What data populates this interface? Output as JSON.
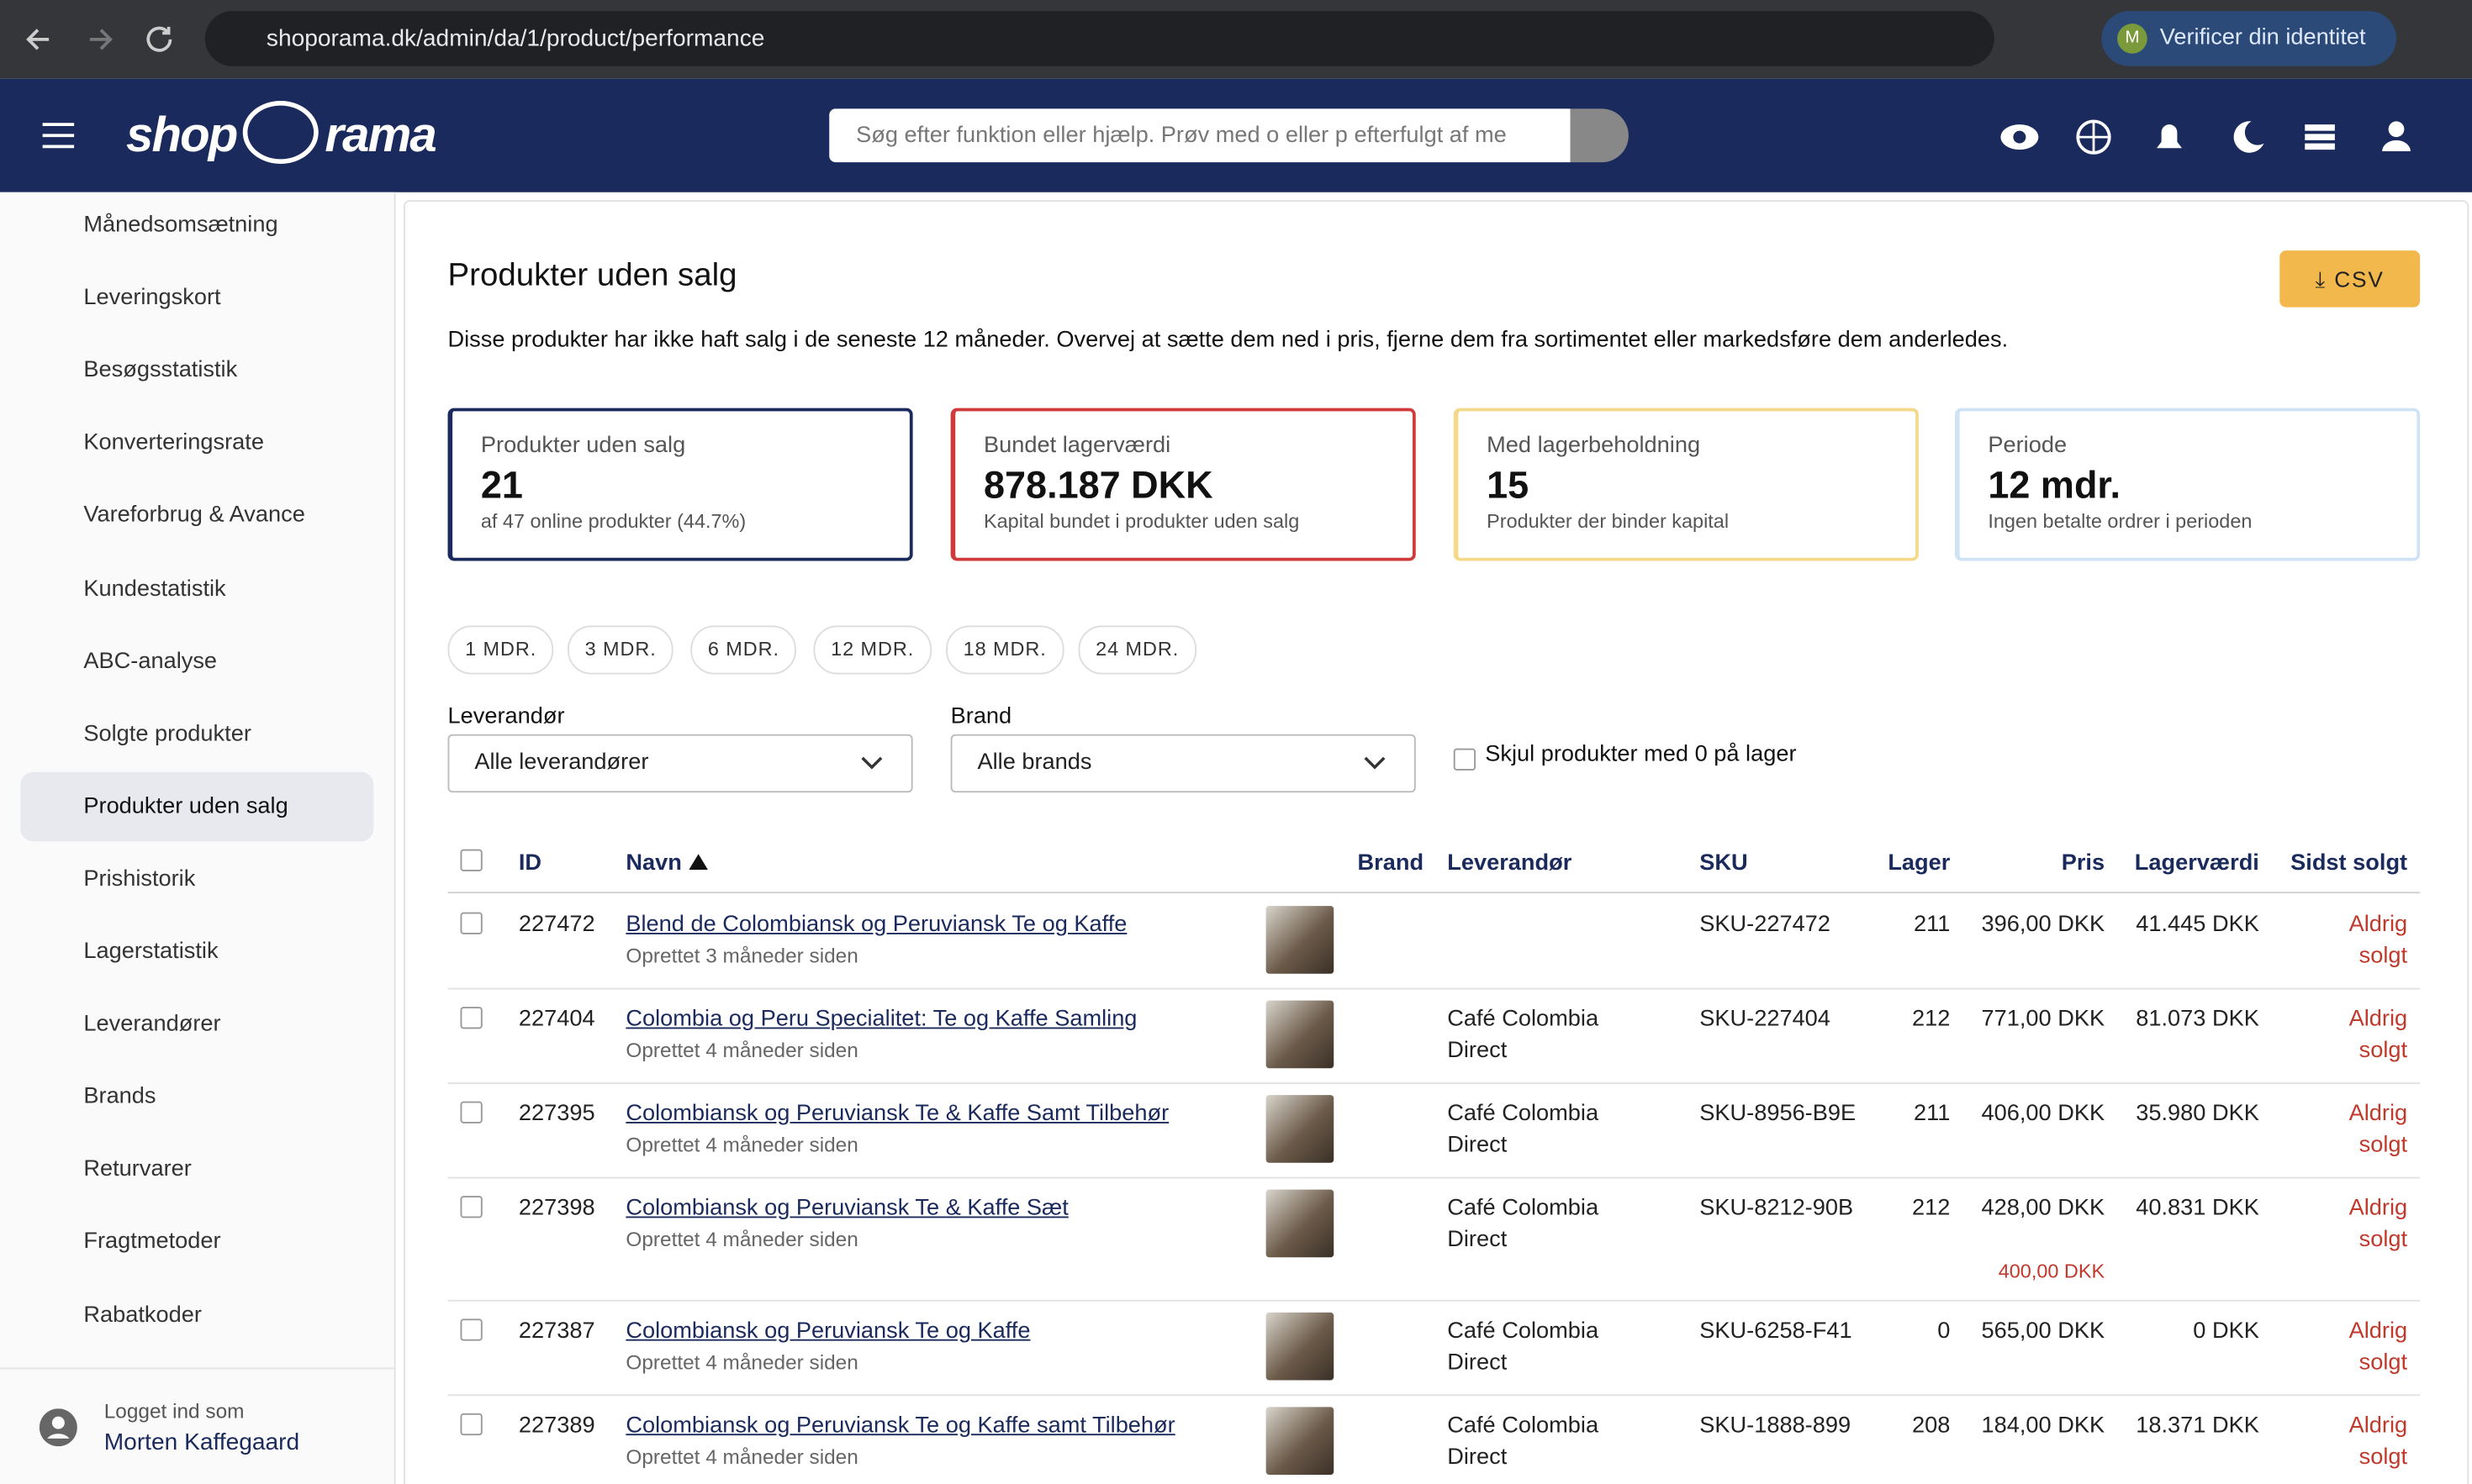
{
  "browser": {
    "url": "shoporama.dk/admin/da/1/product/performance",
    "profile_initial": "M",
    "profile_label": "Verificer din identitet"
  },
  "header": {
    "logo_left": "shop",
    "logo_right": "rama",
    "search_placeholder": "Søg efter funktion eller hjælp. Prøv med o eller p efterfulgt af me"
  },
  "sidebar": {
    "items": [
      "Månedsomsætning",
      "Leveringskort",
      "Besøgsstatistik",
      "Konverteringsrate",
      "Vareforbrug & Avance",
      "Kundestatistik",
      "ABC-analyse",
      "Solgte produkter",
      "Produkter uden salg",
      "Prishistorik",
      "Lagerstatistik",
      "Leverandører",
      "Brands",
      "Returvarer",
      "Fragtmetoder",
      "Rabatkoder"
    ],
    "active": 8,
    "user_label": "Logget ind som",
    "user_name": "Morten Kaffegaard"
  },
  "main": {
    "title": "Produkter uden salg",
    "csv_button": "CSV",
    "description": "Disse produkter har ikke haft salg i de seneste 12 måneder. Overvej at sætte dem ned i pris, fjerne dem fra sortimentet eller markedsføre dem anderledes.",
    "cards": [
      {
        "label": "Produkter uden salg",
        "value": "21",
        "note": "af 47 online produkter (44.7%)",
        "color": "#1b2a5c"
      },
      {
        "label": "Bundet lagerværdi",
        "value": "878.187 DKK",
        "note": "Kapital bundet i produkter uden salg",
        "color": "#d03a3a"
      },
      {
        "label": "Med lagerbeholdning",
        "value": "15",
        "note": "Produkter der binder kapital",
        "color": "#f4d98a"
      },
      {
        "label": "Periode",
        "value": "12 mdr.",
        "note": "Ingen betalte ordrer i perioden",
        "color": "#cfe3f5"
      }
    ],
    "periods": [
      "1 MDR.",
      "3 MDR.",
      "6 MDR.",
      "12 MDR.",
      "18 MDR.",
      "24 MDR."
    ],
    "filters": {
      "supplier_label": "Leverandør",
      "supplier_value": "Alle leverandører",
      "brand_label": "Brand",
      "brand_value": "Alle brands",
      "hide_zero_label": "Skjul produkter med 0 på lager"
    }
  },
  "table": {
    "headers": {
      "id": "ID",
      "name": "Navn",
      "brand": "Brand",
      "supplier": "Leverandør",
      "sku": "SKU",
      "stock": "Lager",
      "price": "Pris",
      "stock_value": "Lagerværdi",
      "last_sold": "Sidst solgt"
    },
    "rows": [
      {
        "id": "227472",
        "name": "Blend de Colombiansk og Peruviansk Te og Kaffe",
        "created": "Oprettet 3 måneder siden",
        "sku": "SKU-227472",
        "stock": "211",
        "price": "396,00 DKK",
        "stock_value": "41.445 DKK",
        "last_sold": "Aldrig solgt"
      },
      {
        "id": "227404",
        "name": "Colombia og Peru Specialitet: Te og Kaffe Samling",
        "created": "Oprettet 4 måneder siden",
        "supplier": "Café Colombia Direct",
        "sku": "SKU-227404",
        "stock": "212",
        "price": "771,00 DKK",
        "stock_value": "81.073 DKK",
        "last_sold": "Aldrig solgt"
      },
      {
        "id": "227395",
        "name": "Colombiansk og Peruviansk Te & Kaffe Samt Tilbehør",
        "created": "Oprettet 4 måneder siden",
        "supplier": "Café Colombia Direct",
        "sku": "SKU-8956-B9E",
        "stock": "211",
        "price": "406,00 DKK",
        "stock_value": "35.980 DKK",
        "last_sold": "Aldrig solgt"
      },
      {
        "id": "227398",
        "name": "Colombiansk og Peruviansk Te & Kaffe Sæt",
        "created": "Oprettet 4 måneder siden",
        "supplier": "Café Colombia Direct",
        "sku": "SKU-8212-90B",
        "stock": "212",
        "price": "428,00 DKK",
        "sale_price": "400,00 DKK",
        "stock_value": "40.831 DKK",
        "last_sold": "Aldrig solgt"
      },
      {
        "id": "227387",
        "name": "Colombiansk og Peruviansk Te og Kaffe",
        "created": "Oprettet 4 måneder siden",
        "supplier": "Café Colombia Direct",
        "sku": "SKU-6258-F41",
        "stock": "0",
        "price": "565,00 DKK",
        "stock_value": "0 DKK",
        "last_sold": "Aldrig solgt"
      },
      {
        "id": "227389",
        "name": "Colombiansk og Peruviansk Te og Kaffe samt Tilbehør",
        "created": "Oprettet 4 måneder siden",
        "supplier": "Café Colombia Direct",
        "sku": "SKU-1888-899",
        "stock": "208",
        "price": "184,00 DKK",
        "stock_value": "18.371 DKK",
        "last_sold": "Aldrig solgt"
      }
    ]
  }
}
